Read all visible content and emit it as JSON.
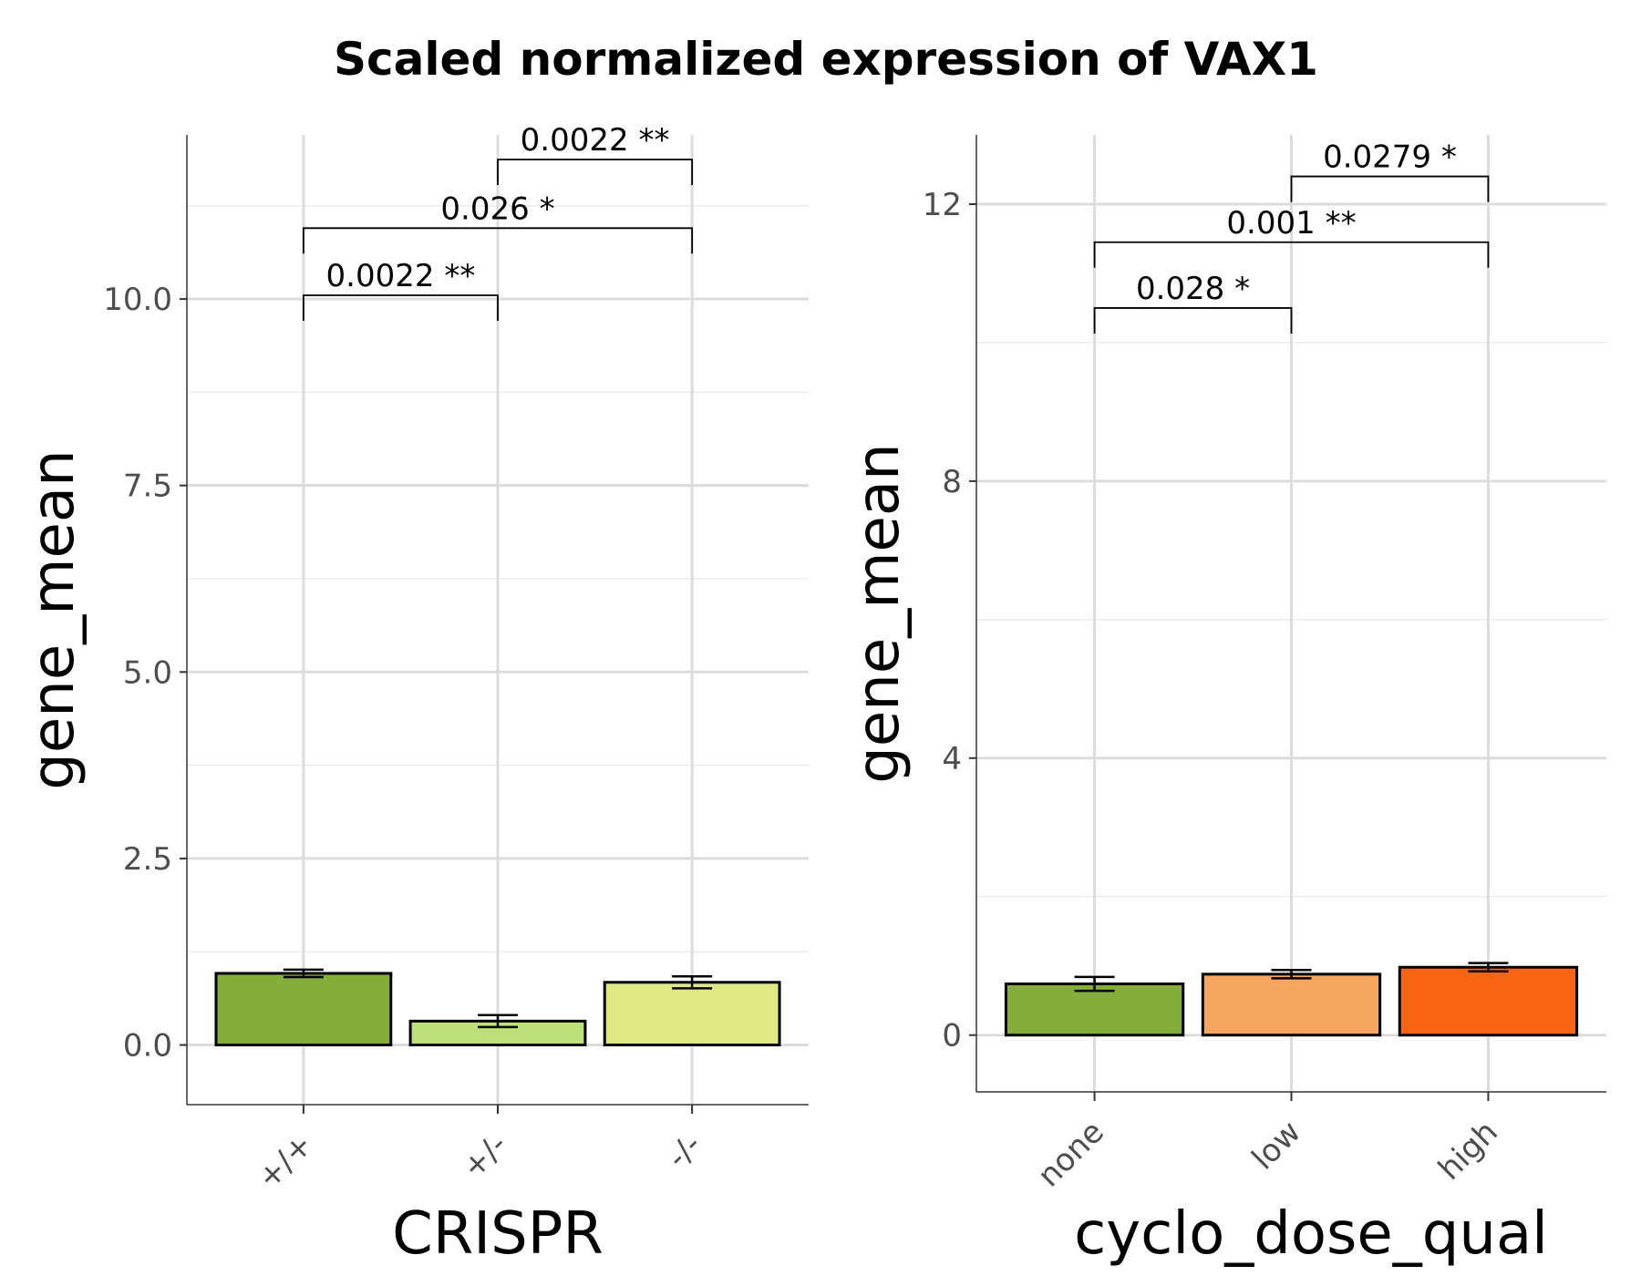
{
  "title": "Scaled normalized expression of VAX1",
  "chart_data": [
    {
      "type": "bar",
      "title": "",
      "xlabel": "CRISPR",
      "ylabel": "gene_mean",
      "categories": [
        "+/+",
        "+/-",
        "-/-"
      ],
      "values": [
        0.96,
        0.32,
        0.84
      ],
      "error": [
        0.05,
        0.08,
        0.08
      ],
      "colors": [
        "#84ad3b",
        "#bde07a",
        "#dfe883"
      ],
      "ylim": [
        -0.8,
        12.2
      ],
      "yticks": [
        0.0,
        2.5,
        5.0,
        7.5,
        10.0
      ],
      "ytick_labels": [
        "0.0",
        "2.5",
        "5.0",
        "7.5",
        "10.0"
      ],
      "grid": true,
      "comparisons": [
        {
          "from": 0,
          "to": 1,
          "label": "0.0022 **",
          "y": 10.05
        },
        {
          "from": 0,
          "to": 2,
          "label": "0.026 *",
          "y": 10.95
        },
        {
          "from": 1,
          "to": 2,
          "label": "0.0022 **",
          "y": 11.87
        }
      ]
    },
    {
      "type": "bar",
      "title": "",
      "xlabel": "cyclo_dose_qual",
      "ylabel": "gene_mean",
      "categories": [
        "none",
        "low",
        "high"
      ],
      "values": [
        0.74,
        0.88,
        0.98
      ],
      "error": [
        0.1,
        0.06,
        0.06
      ],
      "colors": [
        "#84ad3b",
        "#f5a762",
        "#f76414"
      ],
      "ylim": [
        -0.82,
        13.0
      ],
      "yticks": [
        0,
        4,
        8,
        12
      ],
      "ytick_labels": [
        "0",
        "4",
        "8",
        "12"
      ],
      "grid": true,
      "comparisons": [
        {
          "from": 0,
          "to": 1,
          "label": "0.028 *",
          "y": 10.5
        },
        {
          "from": 0,
          "to": 2,
          "label": "0.001 **",
          "y": 11.45
        },
        {
          "from": 1,
          "to": 2,
          "label": "0.0279 *",
          "y": 12.4
        }
      ]
    }
  ]
}
